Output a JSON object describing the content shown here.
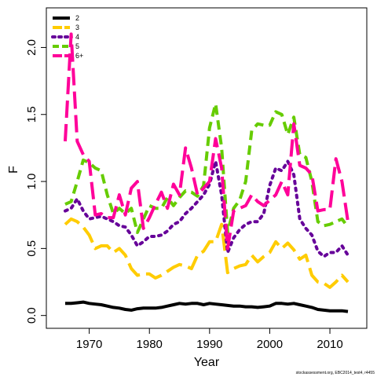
{
  "chart_data": {
    "type": "line",
    "xlabel": "Year",
    "ylabel": "F",
    "xlim": [
      1965,
      2014
    ],
    "ylim": [
      0,
      2.2
    ],
    "x_ticks": [
      1970,
      1980,
      1990,
      2000,
      2010
    ],
    "x_tick_labels": [
      "1970",
      "1980",
      "1990",
      "2000",
      "2010"
    ],
    "y_ticks": [
      0,
      0.5,
      1,
      1.5,
      2
    ],
    "y_tick_labels": [
      "0.0",
      "0.5",
      "1.0",
      "1.5",
      "2.0"
    ],
    "legend_position": "top-left",
    "grid": false,
    "x": [
      1966,
      1967,
      1968,
      1969,
      1970,
      1971,
      1972,
      1973,
      1974,
      1975,
      1976,
      1977,
      1978,
      1979,
      1980,
      1981,
      1982,
      1983,
      1984,
      1985,
      1986,
      1987,
      1988,
      1989,
      1990,
      1991,
      1992,
      1993,
      1994,
      1995,
      1996,
      1997,
      1998,
      1999,
      2000,
      2001,
      2002,
      2003,
      2004,
      2005,
      2006,
      2007,
      2008,
      2009,
      2010,
      2011,
      2012,
      2013
    ],
    "series": [
      {
        "name": "2",
        "color": "#000000",
        "dash": "solid",
        "values": [
          0.09,
          0.09,
          0.095,
          0.1,
          0.09,
          0.085,
          0.08,
          0.07,
          0.06,
          0.055,
          0.045,
          0.04,
          0.05,
          0.055,
          0.055,
          0.055,
          0.06,
          0.07,
          0.08,
          0.09,
          0.085,
          0.09,
          0.09,
          0.08,
          0.09,
          0.085,
          0.08,
          0.075,
          0.07,
          0.07,
          0.065,
          0.065,
          0.06,
          0.065,
          0.07,
          0.09,
          0.09,
          0.085,
          0.09,
          0.08,
          0.07,
          0.06,
          0.045,
          0.04,
          0.035,
          0.035,
          0.035,
          0.03
        ]
      },
      {
        "name": "3",
        "color": "#FFCC00",
        "dash": "long",
        "values": [
          0.68,
          0.72,
          0.7,
          0.66,
          0.6,
          0.5,
          0.52,
          0.52,
          0.47,
          0.5,
          0.45,
          0.35,
          0.3,
          0.31,
          0.31,
          0.28,
          0.3,
          0.33,
          0.36,
          0.38,
          0.37,
          0.35,
          0.45,
          0.48,
          0.55,
          0.55,
          0.68,
          0.32,
          0.35,
          0.37,
          0.38,
          0.45,
          0.4,
          0.44,
          0.47,
          0.55,
          0.5,
          0.54,
          0.49,
          0.42,
          0.45,
          0.3,
          0.25,
          0.24,
          0.21,
          0.25,
          0.3,
          0.25
        ]
      },
      {
        "name": "4",
        "color": "#660099",
        "dash": "dotted",
        "values": [
          0.78,
          0.8,
          0.87,
          0.78,
          0.72,
          0.73,
          0.74,
          0.72,
          0.7,
          0.67,
          0.66,
          0.6,
          0.52,
          0.55,
          0.59,
          0.59,
          0.6,
          0.63,
          0.68,
          0.7,
          0.76,
          0.8,
          0.85,
          0.9,
          0.98,
          1.15,
          0.9,
          0.47,
          0.58,
          0.64,
          0.68,
          0.7,
          0.7,
          0.76,
          0.97,
          1.1,
          1.08,
          1.15,
          1.05,
          0.72,
          0.65,
          0.6,
          0.48,
          0.44,
          0.47,
          0.47,
          0.52,
          0.45
        ]
      },
      {
        "name": "5",
        "color": "#66CC00",
        "dash": "dashed",
        "values": [
          0.83,
          0.85,
          1.0,
          1.16,
          1.14,
          1.1,
          1.08,
          0.9,
          0.76,
          0.8,
          0.76,
          0.8,
          0.62,
          0.72,
          0.82,
          0.8,
          0.8,
          0.88,
          0.82,
          0.88,
          0.93,
          0.92,
          0.89,
          0.97,
          1.4,
          1.58,
          1.25,
          0.62,
          0.8,
          0.86,
          1.0,
          1.38,
          1.43,
          1.42,
          1.42,
          1.52,
          1.5,
          1.35,
          1.48,
          1.2,
          1.18,
          1.0,
          0.7,
          0.67,
          0.68,
          0.7,
          0.72,
          0.66
        ]
      },
      {
        "name": "6+",
        "color": "#FF0099",
        "dash": "long",
        "values": [
          1.3,
          2.1,
          1.3,
          1.2,
          1.15,
          0.75,
          0.76,
          0.73,
          0.73,
          0.9,
          0.75,
          0.95,
          1.0,
          0.65,
          0.73,
          0.83,
          0.92,
          0.8,
          0.98,
          0.9,
          1.25,
          1.1,
          0.9,
          0.95,
          1.0,
          1.32,
          1.1,
          0.5,
          0.78,
          0.8,
          0.82,
          0.9,
          0.85,
          0.82,
          0.86,
          0.9,
          1.0,
          0.9,
          1.43,
          1.12,
          1.1,
          1.05,
          0.78,
          0.79,
          0.79,
          1.17,
          1.0,
          0.7
        ]
      }
    ]
  },
  "caption": "stockassessment.org, EBC2014_test4, r4455"
}
